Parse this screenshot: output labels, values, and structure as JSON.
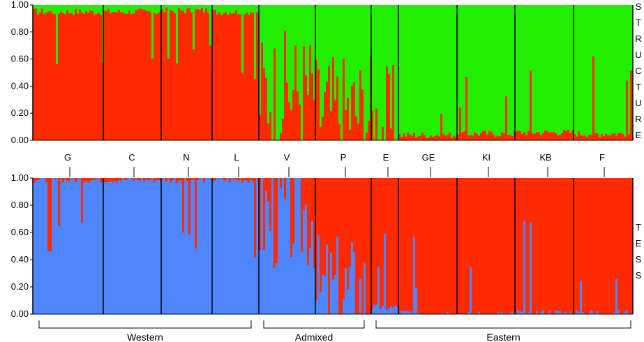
{
  "colors": {
    "red": "#ff2a00",
    "green": "#22ee00",
    "blue": "#4d86ff",
    "tess_red": "#ff2a00"
  },
  "y_ticks": [
    "0.00",
    "0.20",
    "0.40",
    "0.60",
    "0.80",
    "1.00"
  ],
  "populations": [
    "G",
    "C",
    "N",
    "L",
    "V",
    "P",
    "E",
    "GE",
    "KI",
    "KB",
    "F"
  ],
  "structure_label": [
    "S",
    "T",
    "R",
    "U",
    "C",
    "T",
    "U",
    "R",
    "E"
  ],
  "tess_label": [
    "T",
    "E",
    "S",
    "S"
  ],
  "groups": [
    {
      "label": "Western"
    },
    {
      "label": "Admixed"
    },
    {
      "label": "Eastern"
    }
  ],
  "chart_data": [
    {
      "type": "bar",
      "stacked": true,
      "label": "STRUCTURE",
      "ylim": [
        0,
        1
      ],
      "categories": [
        "G",
        "C",
        "N",
        "L",
        "V",
        "P",
        "E",
        "GE",
        "KI",
        "KB",
        "F"
      ],
      "series": [
        {
          "color": "red",
          "values": [
            0.95,
            0.95,
            0.96,
            0.95,
            0.38,
            0.22,
            0.12,
            0.04,
            0.05,
            0.06,
            0.05
          ]
        },
        {
          "color": "green",
          "values": [
            0.05,
            0.05,
            0.04,
            0.05,
            0.62,
            0.78,
            0.88,
            0.96,
            0.95,
            0.94,
            0.95
          ]
        }
      ]
    },
    {
      "type": "bar",
      "stacked": true,
      "label": "TESS",
      "ylim": [
        0,
        1
      ],
      "categories": [
        "G",
        "C",
        "N",
        "L",
        "V",
        "P",
        "E",
        "GE",
        "KI",
        "KB",
        "F"
      ],
      "series": [
        {
          "color": "blue",
          "values": [
            0.99,
            0.99,
            0.99,
            0.99,
            0.75,
            0.15,
            0.05,
            0.01,
            0.0,
            0.01,
            0.01
          ]
        },
        {
          "color": "tess_red",
          "values": [
            0.01,
            0.01,
            0.01,
            0.01,
            0.25,
            0.85,
            0.95,
            0.99,
            1.0,
            0.99,
            0.99
          ]
        }
      ]
    }
  ]
}
